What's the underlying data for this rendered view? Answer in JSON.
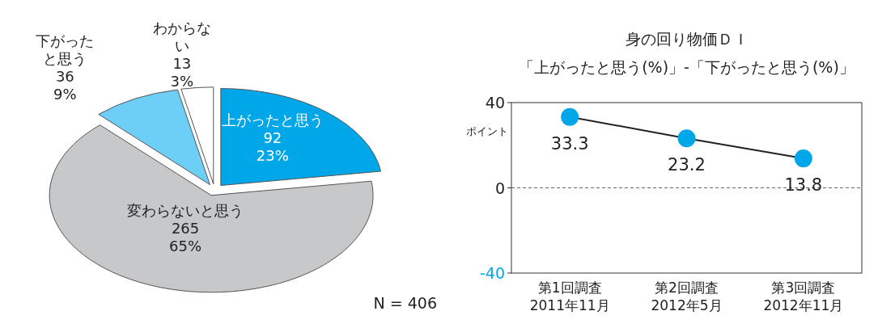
{
  "chart_data": [
    {
      "type": "pie",
      "categories": [
        "上がったと思う",
        "変わらないと思う",
        "下がったと思う",
        "わからない"
      ],
      "values": [
        92,
        265,
        36,
        13
      ],
      "colors": [
        "#00a7e8",
        "#c7c8ca",
        "#6dcff6",
        "#ffffff"
      ],
      "value_labels": [
        "92\n23%",
        "265\n65%",
        "36\n9%",
        "13\n3%"
      ],
      "annotations": [
        "N = 406"
      ]
    },
    {
      "type": "line",
      "title": "身の回り物価ＤＩ",
      "subtitle": "「上がったと思う(%)」-「下がったと思う(%)」",
      "ylabel": "ポイント",
      "categories": [
        "第1回調査\n2011年11月",
        "第2回調査\n2012年5月",
        "第3回調査\n2012年11月"
      ],
      "series": [
        {
          "color": "#00a7e8",
          "values": [
            33.3,
            23.2,
            13.8
          ]
        }
      ],
      "ylim": [
        -40,
        40
      ],
      "yticks": [
        -40,
        0,
        40
      ],
      "ref_lines": [
        {
          "axis": "y",
          "value": 0,
          "line_style": "dashed"
        }
      ],
      "data_labels": true,
      "marker": "circle",
      "grid": false
    }
  ]
}
